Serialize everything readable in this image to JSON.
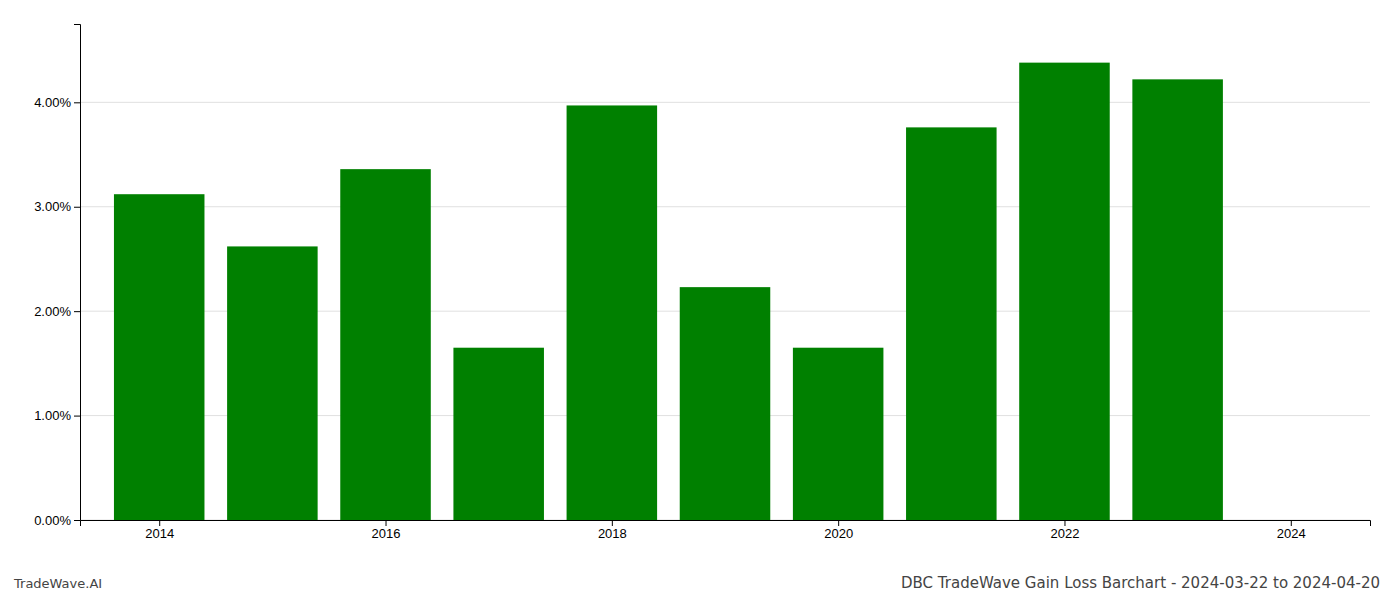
{
  "chart_data": {
    "type": "bar",
    "title": "DBC TradeWave Gain Loss Barchart - 2024-03-22 to 2024-04-20",
    "annotations": [
      "TradeWave.AI"
    ],
    "x": [
      2014,
      2015,
      2016,
      2017,
      2018,
      2019,
      2020,
      2021,
      2022,
      2023
    ],
    "values": [
      0.0312,
      0.0262,
      0.0336,
      0.0165,
      0.0397,
      0.0223,
      0.0165,
      0.0376,
      0.0438,
      0.0422
    ],
    "color": "#008000",
    "xlim": [
      2013.3,
      2024.7
    ],
    "xticks": [
      2014,
      2016,
      2018,
      2020,
      2022,
      2024
    ],
    "ylim": [
      0,
      0.0475
    ],
    "yticks": [
      {
        "value": 0.0,
        "label": "0.00%"
      },
      {
        "value": 0.01,
        "label": "1.00%"
      },
      {
        "value": 0.02,
        "label": "2.00%"
      },
      {
        "value": 0.03,
        "label": "3.00%"
      },
      {
        "value": 0.04,
        "label": "4.00%"
      }
    ],
    "grid": true
  }
}
